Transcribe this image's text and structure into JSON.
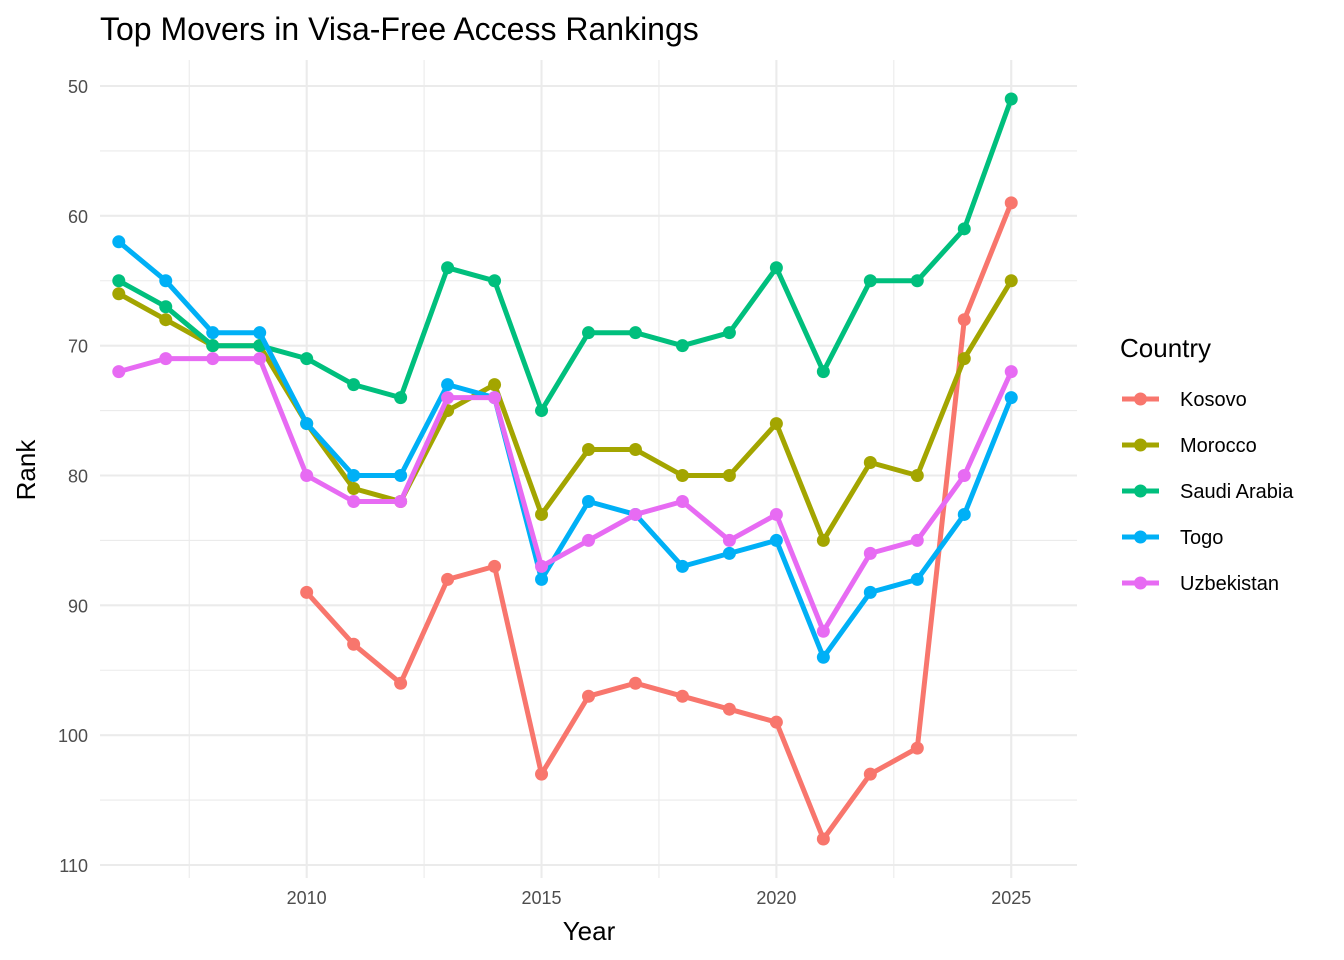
{
  "chart_data": {
    "type": "line",
    "title": "Top Movers in Visa-Free Access Rankings",
    "xlabel": "Year",
    "ylabel": "Rank",
    "xlim": [
      2005.6,
      2026.4
    ],
    "ylim": [
      50,
      110
    ],
    "y_reversed": true,
    "x_ticks": [
      2010,
      2015,
      2020,
      2025
    ],
    "y_ticks": [
      50,
      60,
      70,
      80,
      90,
      100,
      110
    ],
    "grid": true,
    "legend": {
      "title": "Country",
      "position": "right"
    },
    "series": [
      {
        "name": "Kosovo",
        "color": "#F8766D",
        "x": [
          2010,
          2011,
          2012,
          2013,
          2014,
          2015,
          2016,
          2017,
          2018,
          2019,
          2020,
          2021,
          2022,
          2023,
          2024,
          2025
        ],
        "y": [
          89,
          93,
          96,
          88,
          87,
          103,
          97,
          96,
          97,
          98,
          99,
          108,
          103,
          101,
          68,
          59
        ]
      },
      {
        "name": "Morocco",
        "color": "#A3A500",
        "x": [
          2006,
          2007,
          2008,
          2009,
          2010,
          2011,
          2012,
          2013,
          2014,
          2015,
          2016,
          2017,
          2018,
          2019,
          2020,
          2021,
          2022,
          2023,
          2024,
          2025
        ],
        "y": [
          66,
          68,
          70,
          70,
          76,
          81,
          82,
          75,
          73,
          83,
          78,
          78,
          80,
          80,
          76,
          85,
          79,
          80,
          71,
          65
        ]
      },
      {
        "name": "Saudi Arabia",
        "color": "#00BF7D",
        "x": [
          2006,
          2007,
          2008,
          2009,
          2010,
          2011,
          2012,
          2013,
          2014,
          2015,
          2016,
          2017,
          2018,
          2019,
          2020,
          2021,
          2022,
          2023,
          2024,
          2025
        ],
        "y": [
          65,
          67,
          70,
          70,
          71,
          73,
          74,
          64,
          65,
          75,
          69,
          69,
          70,
          69,
          64,
          72,
          65,
          65,
          61,
          51
        ]
      },
      {
        "name": "Togo",
        "color": "#00B0F6",
        "x": [
          2006,
          2007,
          2008,
          2009,
          2010,
          2011,
          2012,
          2013,
          2014,
          2015,
          2016,
          2017,
          2018,
          2019,
          2020,
          2021,
          2022,
          2023,
          2024,
          2025
        ],
        "y": [
          62,
          65,
          69,
          69,
          76,
          80,
          80,
          73,
          74,
          88,
          82,
          83,
          87,
          86,
          85,
          94,
          89,
          88,
          83,
          74
        ]
      },
      {
        "name": "Uzbekistan",
        "color": "#E76BF3",
        "x": [
          2006,
          2007,
          2008,
          2009,
          2010,
          2011,
          2012,
          2013,
          2014,
          2015,
          2016,
          2017,
          2018,
          2019,
          2020,
          2021,
          2022,
          2023,
          2024,
          2025
        ],
        "y": [
          72,
          71,
          71,
          71,
          80,
          82,
          82,
          74,
          74,
          87,
          85,
          83,
          82,
          85,
          83,
          92,
          86,
          85,
          80,
          72
        ]
      }
    ]
  }
}
